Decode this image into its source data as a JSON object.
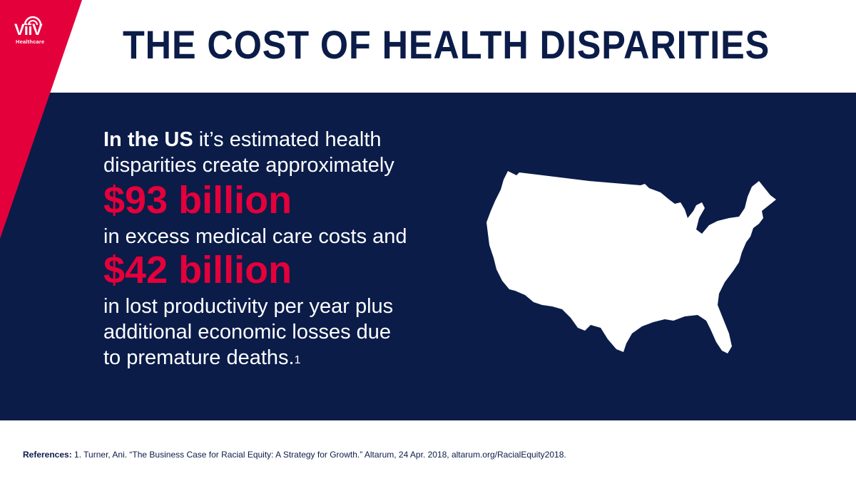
{
  "logo": {
    "brand": "ViiV",
    "subtitle": "Healthcare"
  },
  "title": "THE COST OF HEALTH DISPARITIES",
  "body": {
    "lead_bold": "In the US",
    "lead_rest": " it’s estimated health",
    "line2": "disparities create approximately",
    "figure1": "$93 billion",
    "line3": "in excess medical care costs and",
    "figure2": "$42 billion",
    "line4": "in lost productivity per year plus",
    "line5": "additional economic losses due",
    "line6": "to premature deaths.",
    "footnote_marker": "1"
  },
  "map": {
    "icon": "us-map-icon"
  },
  "references": {
    "label": "References:",
    "text": " 1. Turner, Ani. “The Business Case for Racial Equity: A Strategy for Growth.” Altarum, 24 Apr. 2018, altarum.org/RacialEquity2018."
  },
  "colors": {
    "navy": "#0b1c49",
    "red": "#e4003b",
    "white": "#ffffff"
  }
}
